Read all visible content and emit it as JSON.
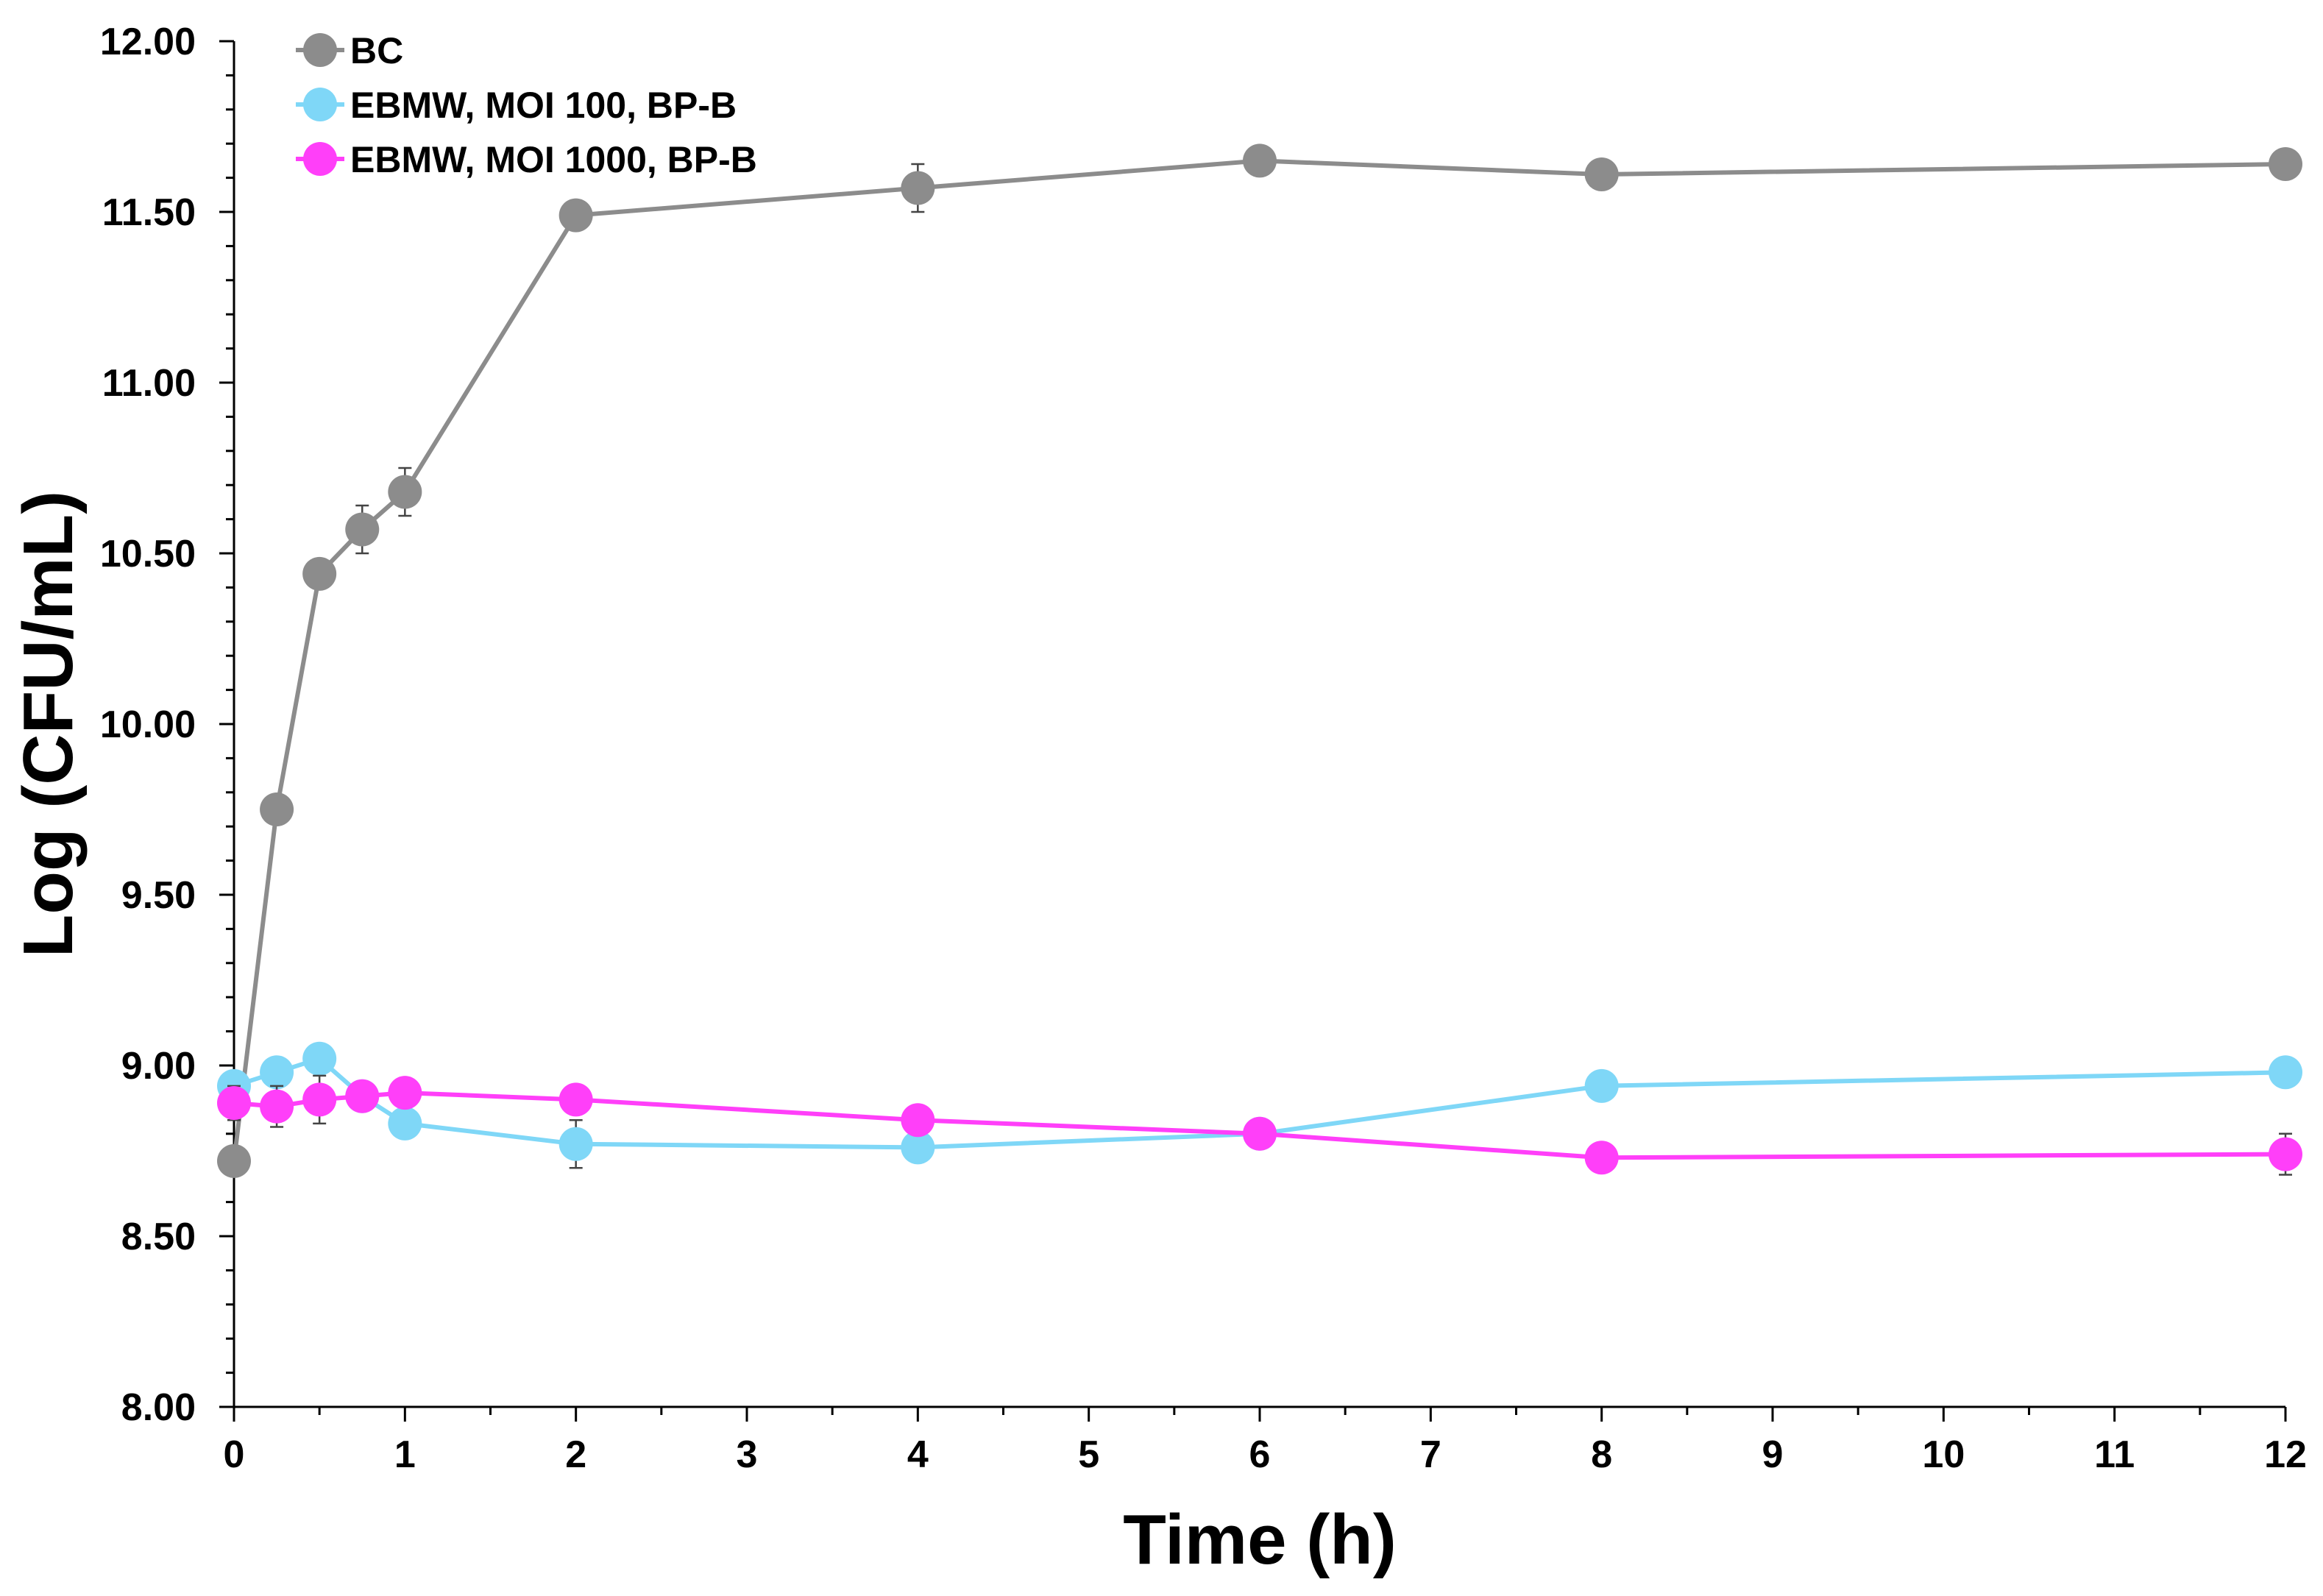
{
  "chart_data": {
    "type": "line",
    "title": "",
    "xlabel": "Time (h)",
    "ylabel": "Log (CFU/mL)",
    "xlim": [
      0,
      12
    ],
    "ylim": [
      8.0,
      12.0
    ],
    "xticks": [
      0,
      1,
      2,
      3,
      4,
      5,
      6,
      7,
      8,
      9,
      10,
      11,
      12
    ],
    "yticks": [
      8.0,
      8.5,
      9.0,
      9.5,
      10.0,
      10.5,
      11.0,
      11.5,
      12.0
    ],
    "xtick_labels": [
      "0",
      "1",
      "2",
      "3",
      "4",
      "5",
      "6",
      "7",
      "8",
      "9",
      "10",
      "11",
      "12"
    ],
    "ytick_labels": [
      "8.00",
      "8.50",
      "9.00",
      "9.50",
      "10.00",
      "10.50",
      "11.00",
      "11.50",
      "12.00"
    ],
    "grid": false,
    "legend_position": "top-left",
    "series": [
      {
        "name": "BC",
        "color": "#8c8c8c",
        "x": [
          0,
          0.25,
          0.5,
          0.75,
          1,
          2,
          4,
          6,
          8,
          12
        ],
        "y": [
          8.72,
          9.75,
          10.44,
          10.57,
          10.68,
          11.49,
          11.57,
          11.65,
          11.61,
          11.64
        ],
        "err": [
          0.03,
          0.04,
          0.04,
          0.07,
          0.07,
          0.02,
          0.07,
          0.02,
          0.02,
          0.02
        ]
      },
      {
        "name": "EBMW, MOI 100, BP-B",
        "color": "#7fd7f7",
        "x": [
          0,
          0.25,
          0.5,
          0.75,
          1,
          2,
          4,
          6,
          8,
          12
        ],
        "y": [
          8.94,
          8.98,
          9.02,
          8.91,
          8.83,
          8.77,
          8.76,
          8.8,
          8.94,
          8.98
        ],
        "err": [
          0.04,
          0.04,
          0.04,
          0.03,
          0.03,
          0.07,
          0.03,
          0.04,
          0.03,
          0.03
        ]
      },
      {
        "name": "EBMW, MOI 1000, BP-B",
        "color": "#ff3ff9",
        "x": [
          0,
          0.25,
          0.5,
          0.75,
          1,
          2,
          4,
          6,
          8,
          12
        ],
        "y": [
          8.89,
          8.88,
          8.9,
          8.91,
          8.92,
          8.9,
          8.84,
          8.8,
          8.73,
          8.74
        ],
        "err": [
          0.05,
          0.06,
          0.07,
          0.03,
          0.03,
          0.03,
          0.03,
          0.04,
          0.03,
          0.06
        ]
      }
    ]
  }
}
